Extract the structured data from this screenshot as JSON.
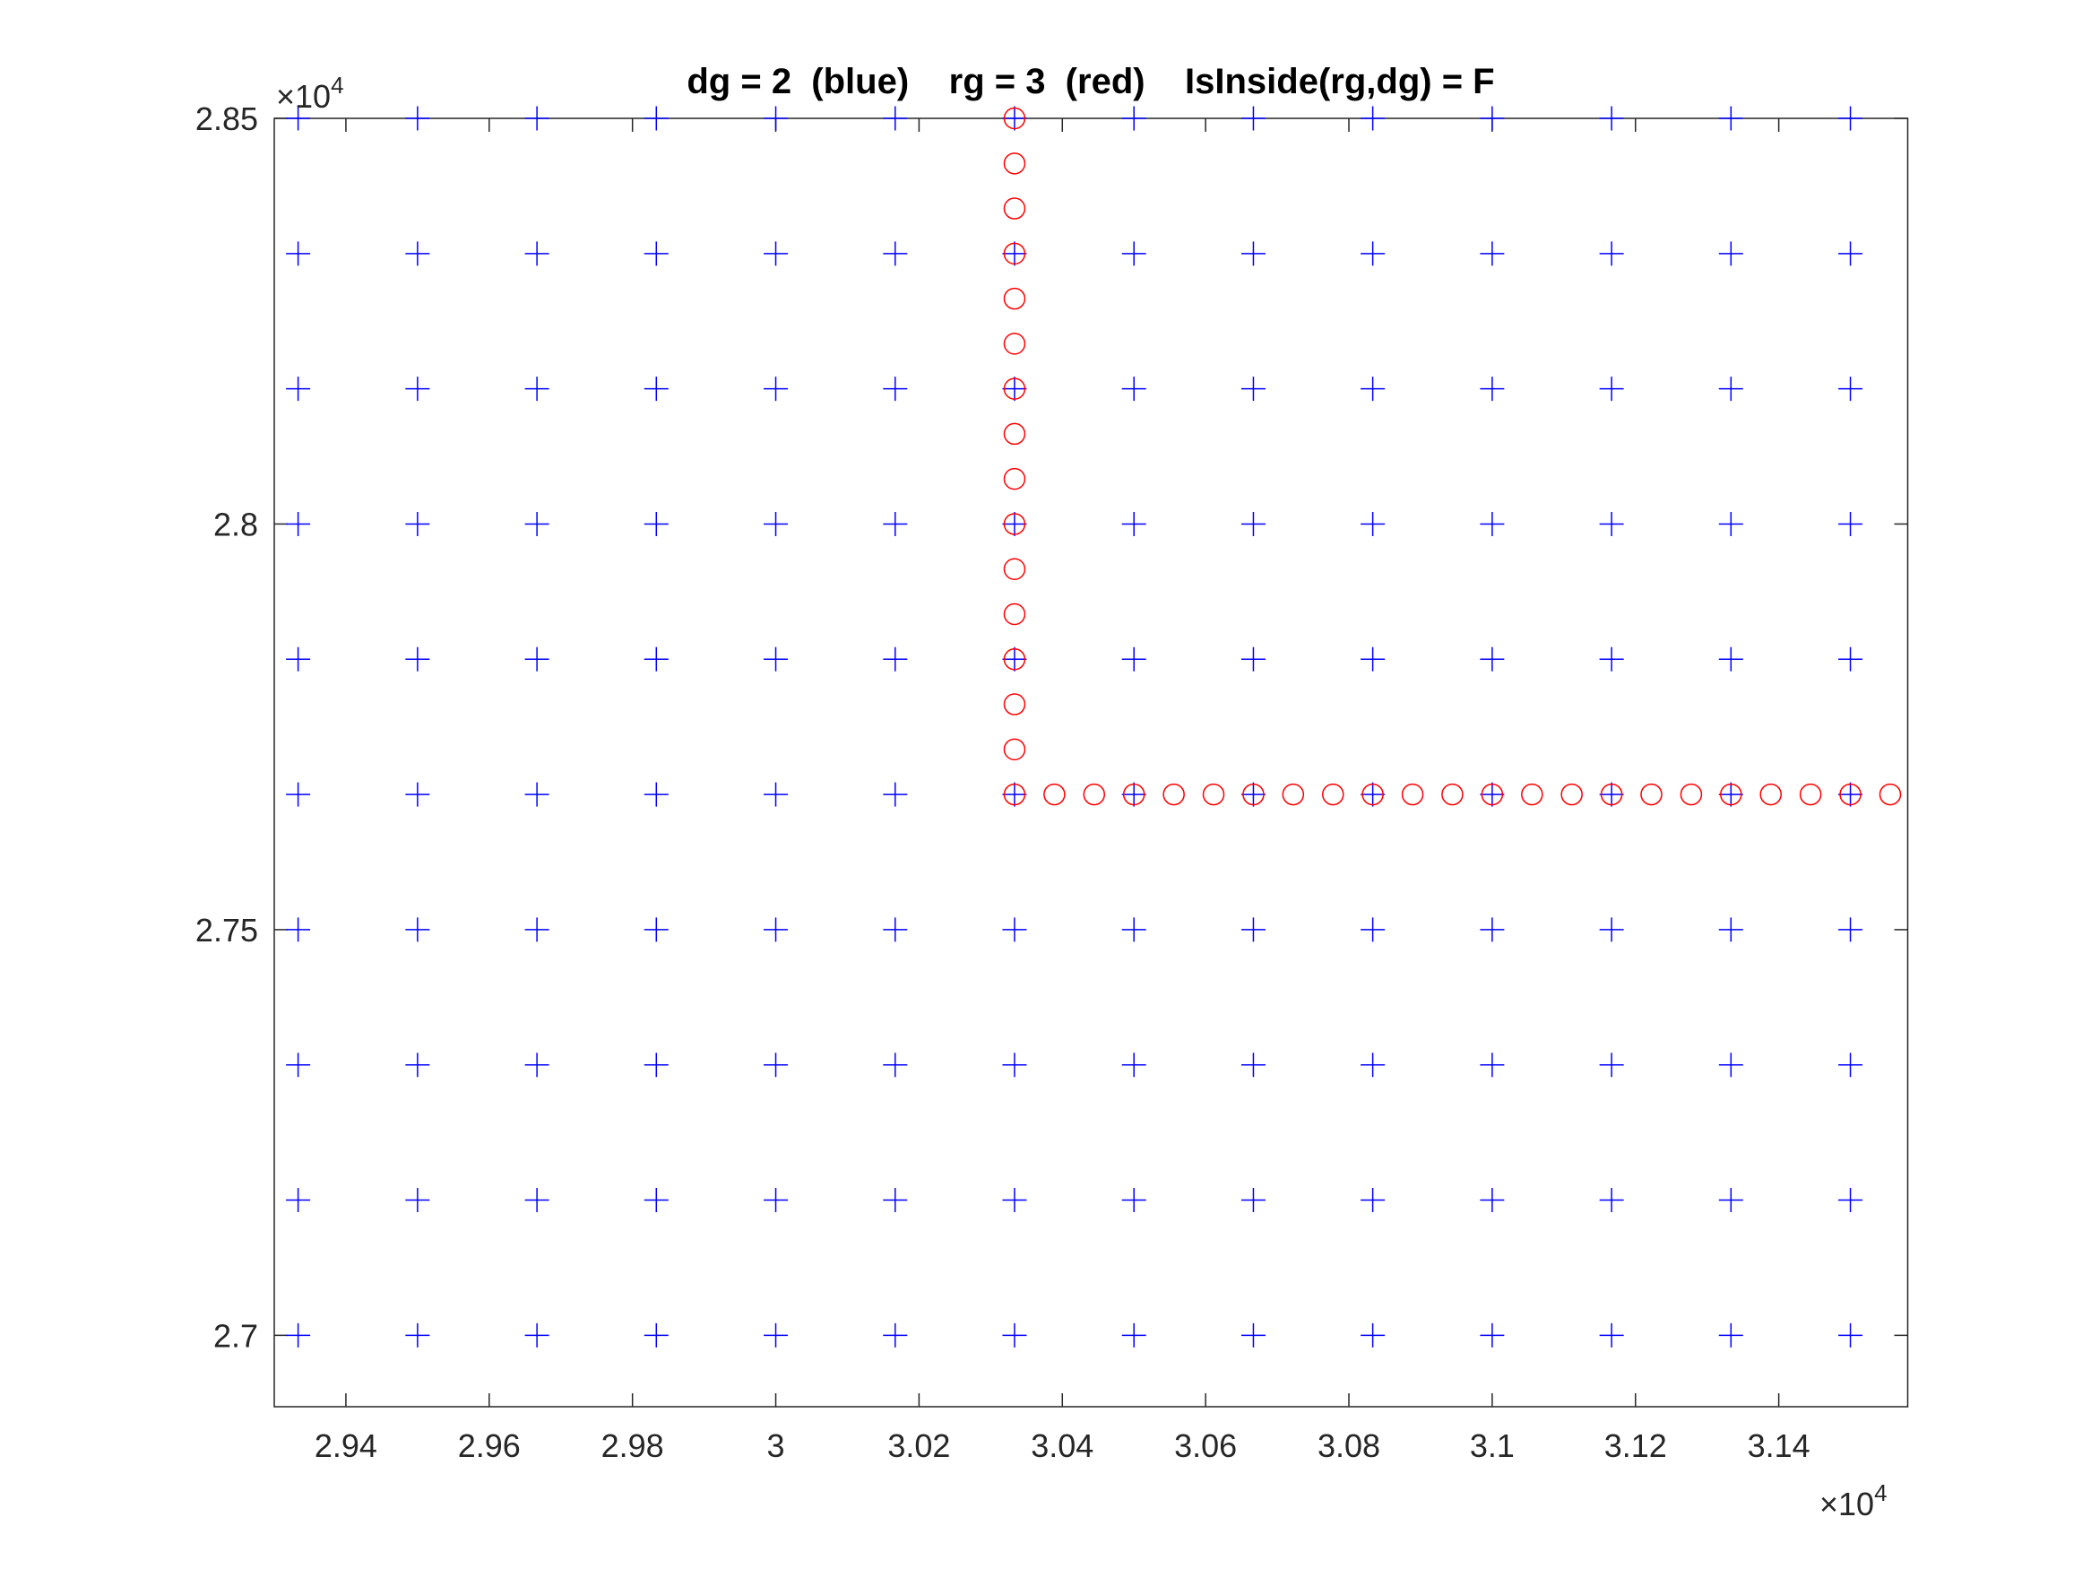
{
  "chart_data": {
    "type": "scatter",
    "title": "dg = 2  (blue)    rg = 3  (red)    IsInside(rg,dg) = F",
    "xlim": [
      29300,
      31580
    ],
    "ylim": [
      26912,
      28500
    ],
    "xticks": [
      {
        "value": 29400,
        "label": "2.94"
      },
      {
        "value": 29600,
        "label": "2.96"
      },
      {
        "value": 29800,
        "label": "2.98"
      },
      {
        "value": 30000,
        "label": "3"
      },
      {
        "value": 30200,
        "label": "3.02"
      },
      {
        "value": 30400,
        "label": "3.04"
      },
      {
        "value": 30600,
        "label": "3.06"
      },
      {
        "value": 30800,
        "label": "3.08"
      },
      {
        "value": 31000,
        "label": "3.1"
      },
      {
        "value": 31200,
        "label": "3.12"
      },
      {
        "value": 31400,
        "label": "3.14"
      }
    ],
    "yticks": [
      {
        "value": 27000,
        "label": "2.7"
      },
      {
        "value": 27500,
        "label": "2.75"
      },
      {
        "value": 28000,
        "label": "2.8"
      },
      {
        "value": 28500,
        "label": "2.85"
      }
    ],
    "x_multiplier": {
      "base": "×10",
      "power": "4"
    },
    "y_multiplier": {
      "base": "×10",
      "power": "4"
    },
    "grid": false,
    "series": [
      {
        "color": "#0000ff",
        "marker": "plus",
        "x": [
          29333.3,
          29500,
          29666.7,
          29833.3,
          30000,
          30166.7,
          30333.3,
          30500,
          30666.7,
          30833.3,
          31000,
          31166.7,
          31333.3,
          31500,
          29333.3,
          29500,
          29666.7,
          29833.3,
          30000,
          30166.7,
          30333.3,
          30500,
          30666.7,
          30833.3,
          31000,
          31166.7,
          31333.3,
          31500,
          29333.3,
          29500,
          29666.7,
          29833.3,
          30000,
          30166.7,
          30333.3,
          30500,
          30666.7,
          30833.3,
          31000,
          31166.7,
          31333.3,
          31500,
          29333.3,
          29500,
          29666.7,
          29833.3,
          30000,
          30166.7,
          30333.3,
          30500,
          30666.7,
          30833.3,
          31000,
          31166.7,
          31333.3,
          31500,
          29333.3,
          29500,
          29666.7,
          29833.3,
          30000,
          30166.7,
          30333.3,
          30500,
          30666.7,
          30833.3,
          31000,
          31166.7,
          31333.3,
          31500,
          29333.3,
          29500,
          29666.7,
          29833.3,
          30000,
          30166.7,
          30333.3,
          30500,
          30666.7,
          30833.3,
          31000,
          31166.7,
          31333.3,
          31500,
          29333.3,
          29500,
          29666.7,
          29833.3,
          30000,
          30166.7,
          30333.3,
          30500,
          30666.7,
          30833.3,
          31000,
          31166.7,
          31333.3,
          31500,
          29333.3,
          29500,
          29666.7,
          29833.3,
          30000,
          30166.7,
          30333.3,
          30500,
          30666.7,
          30833.3,
          31000,
          31166.7,
          31333.3,
          31500,
          29333.3,
          29500,
          29666.7,
          29833.3,
          30000,
          30166.7,
          30333.3,
          30500,
          30666.7,
          30833.3,
          31000,
          31166.7,
          31333.3,
          31500,
          29333.3,
          29500,
          29666.7,
          29833.3,
          30000,
          30166.7,
          30333.3,
          30500,
          30666.7,
          30833.3,
          31000,
          31166.7,
          31333.3,
          31500
        ],
        "values": [
          28500,
          28500,
          28500,
          28500,
          28500,
          28500,
          28500,
          28500,
          28500,
          28500,
          28500,
          28500,
          28500,
          28500,
          28333.3,
          28333.3,
          28333.3,
          28333.3,
          28333.3,
          28333.3,
          28333.3,
          28333.3,
          28333.3,
          28333.3,
          28333.3,
          28333.3,
          28333.3,
          28333.3,
          28166.7,
          28166.7,
          28166.7,
          28166.7,
          28166.7,
          28166.7,
          28166.7,
          28166.7,
          28166.7,
          28166.7,
          28166.7,
          28166.7,
          28166.7,
          28166.7,
          28000,
          28000,
          28000,
          28000,
          28000,
          28000,
          28000,
          28000,
          28000,
          28000,
          28000,
          28000,
          28000,
          28000,
          27833.3,
          27833.3,
          27833.3,
          27833.3,
          27833.3,
          27833.3,
          27833.3,
          27833.3,
          27833.3,
          27833.3,
          27833.3,
          27833.3,
          27833.3,
          27833.3,
          27666.7,
          27666.7,
          27666.7,
          27666.7,
          27666.7,
          27666.7,
          27666.7,
          27666.7,
          27666.7,
          27666.7,
          27666.7,
          27666.7,
          27666.7,
          27666.7,
          27500,
          27500,
          27500,
          27500,
          27500,
          27500,
          27500,
          27500,
          27500,
          27500,
          27500,
          27500,
          27500,
          27500,
          27333.3,
          27333.3,
          27333.3,
          27333.3,
          27333.3,
          27333.3,
          27333.3,
          27333.3,
          27333.3,
          27333.3,
          27333.3,
          27333.3,
          27333.3,
          27333.3,
          27166.7,
          27166.7,
          27166.7,
          27166.7,
          27166.7,
          27166.7,
          27166.7,
          27166.7,
          27166.7,
          27166.7,
          27166.7,
          27166.7,
          27166.7,
          27166.7,
          27000,
          27000,
          27000,
          27000,
          27000,
          27000,
          27000,
          27000,
          27000,
          27000,
          27000,
          27000,
          27000,
          27000
        ]
      },
      {
        "color": "#ff0000",
        "marker": "circle",
        "x": [
          30333.3,
          30333.3,
          30333.3,
          30333.3,
          30333.3,
          30333.3,
          30333.3,
          30333.3,
          30333.3,
          30333.3,
          30333.3,
          30333.3,
          30333.3,
          30333.3,
          30333.3,
          30333.3,
          30388.9,
          30444.4,
          30500,
          30555.6,
          30611.1,
          30666.7,
          30722.2,
          30777.8,
          30833.3,
          30888.9,
          30944.4,
          31000,
          31055.6,
          31111.1,
          31166.7,
          31222.2,
          31277.8,
          31333.3,
          31388.9,
          31444.4,
          31500,
          31555.6
        ],
        "values": [
          28500,
          28444.4,
          28388.9,
          28333.3,
          28277.8,
          28222.2,
          28166.7,
          28111.1,
          28055.6,
          28000,
          27944.4,
          27888.9,
          27833.3,
          27777.8,
          27722.2,
          27666.7,
          27666.7,
          27666.7,
          27666.7,
          27666.7,
          27666.7,
          27666.7,
          27666.7,
          27666.7,
          27666.7,
          27666.7,
          27666.7,
          27666.7,
          27666.7,
          27666.7,
          27666.7,
          27666.7,
          27666.7,
          27666.7,
          27666.7,
          27666.7,
          27666.7,
          27666.7
        ]
      }
    ]
  }
}
